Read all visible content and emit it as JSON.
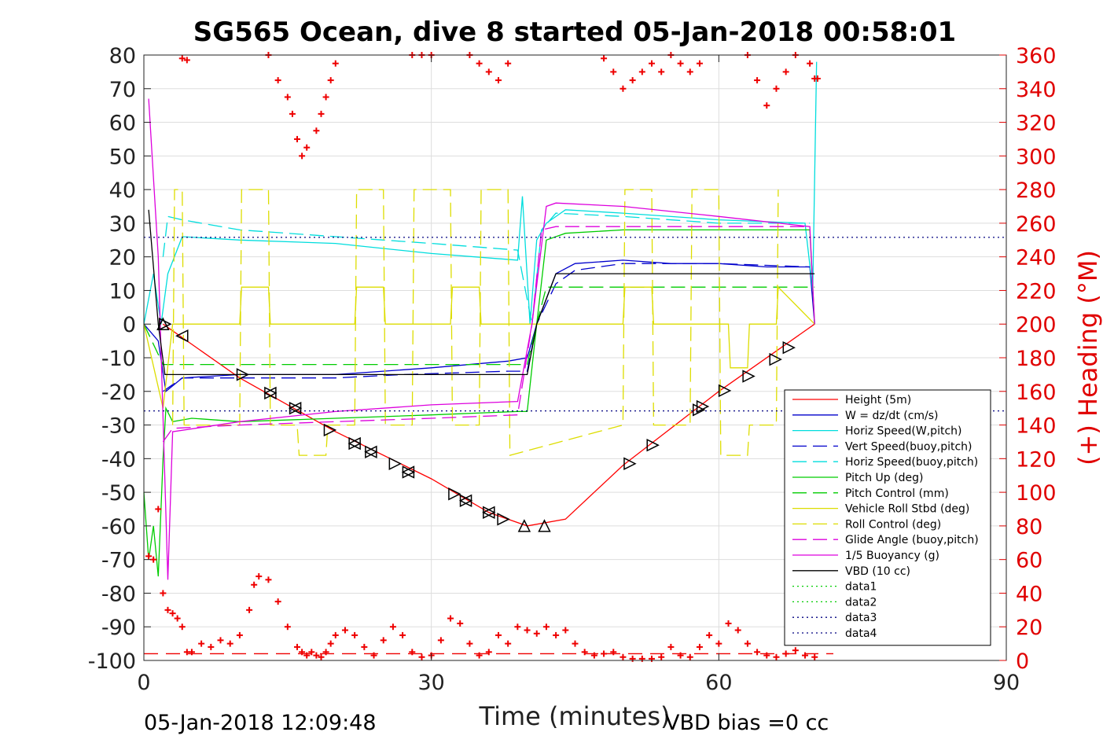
{
  "chart_data": {
    "type": "line",
    "title": "SG565 Ocean, dive 8 started 05-Jan-2018 00:58:01",
    "xlabel": "Time (minutes)",
    "ylabel": "",
    "y2label": "(+) Heading (°M)",
    "xlim": [
      0,
      90
    ],
    "ylim": [
      -100,
      80
    ],
    "y2lim": [
      0,
      360
    ],
    "x_ticks": [
      "0",
      "30",
      "60",
      "90"
    ],
    "y_ticks": [
      "80",
      "70",
      "60",
      "50",
      "40",
      "30",
      "20",
      "10",
      "0",
      "-10",
      "-20",
      "-30",
      "-40",
      "-50",
      "-60",
      "-70",
      "-80",
      "-90",
      "-100"
    ],
    "y2_ticks": [
      "360",
      "340",
      "320",
      "300",
      "280",
      "260",
      "240",
      "220",
      "200",
      "180",
      "160",
      "140",
      "120",
      "100",
      "80",
      "60",
      "40",
      "20",
      "0"
    ],
    "grid": true,
    "legend_position": "right",
    "footer_left": "05-Jan-2018 12:09:48",
    "footer_right": "VBD bias =0 cc",
    "series": [
      {
        "name": "Height (5m)",
        "color": "#ff0000",
        "style": "solid",
        "x": [
          2,
          10,
          20,
          30,
          36,
          40,
          44,
          50,
          60,
          70
        ],
        "y": [
          0,
          -16,
          -32,
          -46,
          -56,
          -60,
          -58,
          -42,
          -20,
          0
        ]
      },
      {
        "name": "W = dz/dt (cm/s)",
        "color": "#0000cc",
        "style": "solid",
        "x": [
          0,
          1.5,
          2.3,
          4,
          10,
          20,
          30,
          38,
          40,
          41,
          43,
          45,
          50,
          55,
          60,
          65,
          69.5,
          70
        ],
        "y": [
          0,
          -5,
          -20,
          -16,
          -15,
          -15,
          -13,
          -11,
          -10,
          0,
          15,
          18,
          19,
          18,
          18,
          17,
          17,
          0
        ]
      },
      {
        "name": "Horiz Speed(W,pitch)",
        "color": "#00dddd",
        "style": "solid",
        "x": [
          0,
          1,
          1.8,
          2.5,
          4,
          10,
          20,
          30,
          39,
          39.5,
          40.3,
          41,
          42,
          44,
          50,
          60,
          69,
          69.8,
          70.2
        ],
        "y": [
          0,
          15,
          0,
          15,
          26,
          25,
          24,
          21,
          19,
          38,
          0,
          25,
          30,
          34,
          33,
          31,
          30,
          10,
          78
        ]
      },
      {
        "name": "Vert Speed(buoy,pitch)",
        "color": "#0000cc",
        "style": "dashed",
        "x": [
          2,
          4,
          10,
          20,
          27,
          38,
          40,
          41,
          43,
          45,
          50,
          60,
          69.5
        ],
        "y": [
          -20,
          -16,
          -16,
          -16,
          -15,
          -14,
          -14,
          0,
          12,
          16,
          18,
          18,
          17
        ]
      },
      {
        "name": "Horiz Speed(buoy,pitch)",
        "color": "#00dddd",
        "style": "dashed",
        "x": [
          2,
          2.5,
          4,
          10,
          20,
          30,
          39,
          40.5,
          41.5,
          43,
          50,
          60,
          69.5
        ],
        "y": [
          20,
          32,
          31,
          28,
          26,
          24,
          22,
          0,
          28,
          33,
          32,
          30,
          30
        ]
      },
      {
        "name": "Pitch Up (deg)",
        "color": "#00cc00",
        "style": "solid",
        "x": [
          0,
          0.5,
          1,
          1.5,
          2,
          2.3,
          3,
          5,
          10,
          20,
          30,
          39,
          40,
          41,
          42,
          44,
          50,
          60,
          69.5,
          70
        ],
        "y": [
          -50,
          -70,
          -60,
          -75,
          -40,
          -25,
          -29,
          -28,
          -29,
          -28,
          -27,
          -26,
          -26,
          0,
          25,
          27,
          28,
          28,
          28,
          0
        ]
      },
      {
        "name": "Pitch Control (mm)",
        "color": "#00cc00",
        "style": "dashed",
        "x": [
          0,
          2,
          3,
          40,
          41,
          42,
          70
        ],
        "y": [
          0,
          -12,
          -12,
          -12,
          0,
          11,
          11
        ]
      },
      {
        "name": "Vehicle Roll Stbd (deg)",
        "color": "#dddd00",
        "style": "solid",
        "x": [
          0,
          2,
          3,
          4,
          10,
          10.2,
          13,
          13.2,
          20,
          22,
          22.2,
          25,
          25.2,
          32,
          32.2,
          35,
          35.2,
          40,
          43,
          50,
          50.2,
          53,
          53.2,
          60,
          61,
          61.2,
          63,
          63.2,
          66,
          66.2,
          70
        ],
        "y": [
          0,
          -25,
          0,
          0,
          0,
          11,
          11,
          0,
          0,
          0,
          11,
          11,
          0,
          0,
          11,
          11,
          0,
          0,
          0,
          0,
          11,
          11,
          0,
          0,
          0,
          -13,
          -13,
          0,
          0,
          11,
          0
        ]
      },
      {
        "name": "Roll Control (deg)",
        "color": "#dddd00",
        "style": "dashed",
        "x": [
          3,
          3.2,
          4,
          4.2,
          10,
          10.2,
          13,
          13.2,
          16,
          16.2,
          19,
          19.2,
          22,
          22.2,
          25,
          25.2,
          28,
          28.2,
          32,
          32.2,
          35,
          35.2,
          38,
          38.2,
          50,
          50.2,
          53,
          53.2,
          57,
          57.2,
          60,
          60.2,
          63,
          63.2,
          66,
          66.2
        ],
        "y": [
          -30,
          40,
          40,
          -30,
          -30,
          40,
          40,
          -30,
          -30,
          -39,
          -39,
          -30,
          -30,
          40,
          40,
          -30,
          -30,
          40,
          40,
          -30,
          -30,
          40,
          40,
          -39,
          -30,
          40,
          40,
          -30,
          -30,
          40,
          40,
          -39,
          -39,
          -30,
          -30,
          40
        ]
      },
      {
        "name": "Glide Angle (buoy,pitch)",
        "color": "#dd00dd",
        "style": "dashed",
        "x": [
          2,
          3,
          10,
          20,
          30,
          39,
          40.5,
          41.5,
          43,
          50,
          60,
          69.5
        ],
        "y": [
          -35,
          -31,
          -30,
          -29,
          -28,
          -27,
          0,
          28,
          29,
          29,
          29,
          29
        ]
      },
      {
        "name": "1/5 Buoyancy (g)",
        "color": "#dd00dd",
        "style": "solid",
        "x": [
          0.5,
          1.5,
          2.5,
          3,
          10,
          20,
          30,
          39,
          40.5,
          42,
          43,
          50,
          60,
          69.5,
          70
        ],
        "y": [
          67,
          20,
          -76,
          -32,
          -29,
          -26,
          -24,
          -23,
          0,
          35,
          36,
          35,
          32,
          29,
          0
        ]
      },
      {
        "name": "VBD (10 cc)",
        "color": "#000000",
        "style": "solid",
        "x": [
          0.5,
          1.5,
          2.2,
          3,
          40,
          41,
          43,
          44,
          70
        ],
        "y": [
          34,
          0,
          -15,
          -15,
          -15,
          0,
          15,
          15,
          15
        ]
      },
      {
        "name": "data1",
        "color": "#00cc00",
        "style": "dotted",
        "x": [],
        "y": []
      },
      {
        "name": "data2",
        "color": "#00cc00",
        "style": "dotted",
        "x": [],
        "y": []
      },
      {
        "name": "data3",
        "color": "#000080",
        "style": "dotted",
        "x": [
          0,
          90
        ],
        "y": [
          25.8,
          25.8
        ]
      },
      {
        "name": "data4",
        "color": "#000080",
        "style": "dotted",
        "x": [
          0,
          90
        ],
        "y": [
          -25.8,
          -25.8
        ]
      }
    ],
    "heading_series": {
      "axis": "right",
      "color": "#ee0000",
      "marker": "+",
      "x": [
        0.5,
        1,
        1.5,
        2,
        2.5,
        3,
        3.5,
        4,
        4.5,
        5,
        6,
        7,
        8,
        9,
        10,
        11,
        11.5,
        12,
        13,
        14,
        15,
        16,
        16.5,
        17,
        17.5,
        18,
        18.5,
        19,
        19.5,
        20,
        21,
        22,
        23,
        24,
        25,
        26,
        27,
        28,
        29,
        30,
        31,
        32,
        33,
        34,
        35,
        36,
        37,
        38,
        39,
        40,
        41,
        42,
        43,
        44,
        45,
        46,
        47,
        48,
        49,
        50,
        51,
        52,
        53,
        54,
        55,
        56,
        57,
        58,
        59,
        60,
        61,
        62,
        63,
        64,
        65,
        66,
        67,
        68,
        69,
        70,
        70.3
      ],
      "y": [
        62,
        60,
        90,
        40,
        30,
        28,
        25,
        20,
        5,
        5,
        10,
        8,
        12,
        10,
        15,
        30,
        45,
        50,
        48,
        35,
        20,
        8,
        5,
        3,
        5,
        3,
        2,
        5,
        10,
        15,
        18,
        15,
        8,
        3,
        12,
        20,
        15,
        5,
        2,
        3,
        12,
        25,
        22,
        10,
        3,
        5,
        15,
        10,
        20,
        18,
        16,
        20,
        15,
        18,
        10,
        5,
        3,
        4,
        5,
        2,
        1,
        1,
        1,
        2,
        8,
        3,
        2,
        8,
        15,
        10,
        22,
        18,
        10,
        5,
        3,
        2,
        4,
        6,
        3,
        2,
        346
      ],
      "x_top": [
        4,
        4.5,
        13,
        14,
        15,
        15.5,
        16,
        16.5,
        17,
        18,
        18.5,
        19,
        19.5,
        20,
        28,
        29,
        30,
        34,
        35,
        36,
        37,
        38,
        48,
        49,
        50,
        51,
        52,
        53,
        54,
        55,
        56,
        57,
        58,
        63,
        64,
        65,
        66,
        67,
        68,
        69.5,
        70
      ],
      "y_top": [
        358,
        357,
        360,
        345,
        335,
        325,
        310,
        300,
        305,
        315,
        325,
        335,
        345,
        355,
        360,
        360,
        360,
        360,
        355,
        350,
        345,
        355,
        358,
        350,
        340,
        345,
        350,
        355,
        350,
        360,
        355,
        350,
        355,
        360,
        345,
        330,
        340,
        350,
        360,
        355,
        346
      ]
    },
    "heading_ref_line": {
      "axis": "right",
      "y": 4,
      "color": "#ee0000",
      "style": "dashed"
    },
    "triangle_markers": {
      "color": "#000000",
      "up": [
        [
          2,
          0
        ],
        [
          39.7,
          -60
        ],
        [
          41.8,
          -60
        ]
      ],
      "right": [
        [
          2.2,
          0
        ],
        [
          10.3,
          -15
        ],
        [
          13.2,
          -20.5
        ],
        [
          15.8,
          -25
        ],
        [
          19.4,
          -31.5
        ],
        [
          22,
          -35.5
        ],
        [
          23.7,
          -38
        ],
        [
          26.2,
          -41.5
        ],
        [
          27.6,
          -44
        ],
        [
          32.4,
          -50.5
        ],
        [
          33.6,
          -52.5
        ],
        [
          36,
          -56
        ],
        [
          37.5,
          -58
        ],
        [
          50.7,
          -41.5
        ],
        [
          53.1,
          -36
        ],
        [
          57.9,
          -25.5
        ],
        [
          58.3,
          -24.5
        ],
        [
          60.6,
          -19.8
        ],
        [
          63.1,
          -15.5
        ],
        [
          65.9,
          -10.5
        ],
        [
          67.3,
          -7
        ]
      ],
      "left": [
        [
          4,
          -3.5
        ],
        [
          13.2,
          -20.5
        ],
        [
          15.8,
          -25
        ],
        [
          22,
          -35.5
        ],
        [
          23.7,
          -38
        ],
        [
          27.6,
          -44
        ],
        [
          33.6,
          -52.5
        ],
        [
          36,
          -56
        ]
      ]
    }
  }
}
